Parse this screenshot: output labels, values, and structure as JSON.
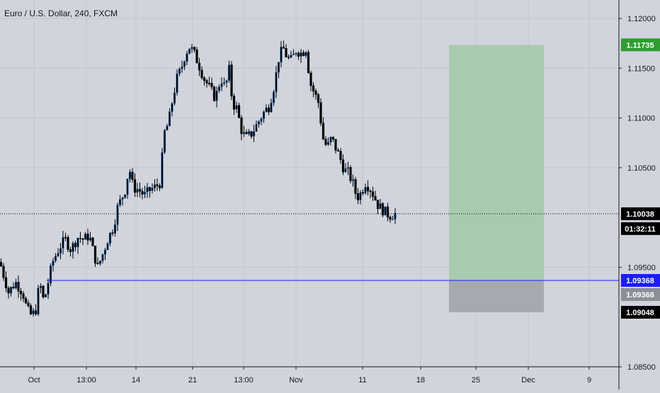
{
  "header": {
    "title": "Euro / U.S. Dollar, 240, FXCM"
  },
  "colors": {
    "background": "#d1d4dc",
    "grid": "#c3c6ce",
    "candle_body": "#000000",
    "candle_up_border": "#2a6db8",
    "target_zone": "#a9cbad",
    "stop_zone": "#a7a9b0",
    "entry_line": "#1c1cff",
    "current_price_line": "#000000",
    "label_green": "#2e9e30",
    "label_blue": "#1c1cff",
    "label_gray": "#8c8f96",
    "label_black": "#000000"
  },
  "price_axis": {
    "ticks": [
      "1.12000",
      "1.11500",
      "1.11000",
      "1.10500",
      "1.09500",
      "1.08500"
    ],
    "labels": {
      "target": "1.11735",
      "current": "1.10038",
      "countdown": "01:32:11",
      "entry": "1.09368",
      "entry_gray": "1.09368",
      "stop": "1.09048"
    }
  },
  "time_axis": {
    "labels": [
      "Oct",
      "13:00",
      "14",
      "21",
      "13:00",
      "Nov",
      "11",
      "18",
      "25",
      "Dec",
      "9"
    ]
  },
  "chart_data": {
    "type": "candlestick",
    "title": "Euro / U.S. Dollar, 240, FXCM",
    "ylim": [
      1.085,
      1.1215
    ],
    "price_ticks": [
      1.12,
      1.115,
      1.11,
      1.105,
      1.095,
      1.085
    ],
    "x_tick_labels": [
      "Oct",
      "13:00",
      "14",
      "21",
      "13:00",
      "Nov",
      "11",
      "18",
      "25",
      "Dec",
      "9"
    ],
    "close_path": [
      [
        0,
        1.0955
      ],
      [
        12,
        1.0925
      ],
      [
        22,
        1.0935
      ],
      [
        32,
        1.0925
      ],
      [
        38,
        1.0908
      ],
      [
        44,
        1.0902
      ],
      [
        50,
        1.0905
      ],
      [
        56,
        1.0935
      ],
      [
        62,
        1.0915
      ],
      [
        68,
        1.0935
      ],
      [
        74,
        1.0955
      ],
      [
        84,
        1.097
      ],
      [
        92,
        1.0978
      ],
      [
        100,
        1.0968
      ],
      [
        110,
        1.098
      ],
      [
        118,
        1.0978
      ],
      [
        126,
        1.0982
      ],
      [
        132,
        1.0965
      ],
      [
        138,
        1.095
      ],
      [
        146,
        1.0965
      ],
      [
        152,
        1.0978
      ],
      [
        160,
        1.099
      ],
      [
        166,
        1.101
      ],
      [
        172,
        1.102
      ],
      [
        178,
        1.103
      ],
      [
        182,
        1.1052
      ],
      [
        188,
        1.103
      ],
      [
        196,
        1.1028
      ],
      [
        204,
        1.1022
      ],
      [
        212,
        1.1028
      ],
      [
        218,
        1.103
      ],
      [
        226,
        1.1035
      ],
      [
        232,
        1.1085
      ],
      [
        238,
        1.1095
      ],
      [
        244,
        1.112
      ],
      [
        250,
        1.114
      ],
      [
        256,
        1.115
      ],
      [
        262,
        1.1165
      ],
      [
        268,
        1.1172
      ],
      [
        274,
        1.1165
      ],
      [
        280,
        1.1155
      ],
      [
        288,
        1.114
      ],
      [
        296,
        1.113
      ],
      [
        304,
        1.112
      ],
      [
        312,
        1.114
      ],
      [
        318,
        1.113
      ],
      [
        324,
        1.115
      ],
      [
        328,
        1.1115
      ],
      [
        334,
        1.111
      ],
      [
        342,
        1.1085
      ],
      [
        348,
        1.108
      ],
      [
        356,
        1.1085
      ],
      [
        364,
        1.1095
      ],
      [
        372,
        1.1105
      ],
      [
        380,
        1.1112
      ],
      [
        388,
        1.1135
      ],
      [
        394,
        1.1162
      ],
      [
        400,
        1.117
      ],
      [
        406,
        1.116
      ],
      [
        412,
        1.1158
      ],
      [
        418,
        1.1168
      ],
      [
        426,
        1.1165
      ],
      [
        432,
        1.117
      ],
      [
        438,
        1.1135
      ],
      [
        444,
        1.1125
      ],
      [
        450,
        1.1115
      ],
      [
        456,
        1.108
      ],
      [
        462,
        1.107
      ],
      [
        468,
        1.108
      ],
      [
        474,
        1.107
      ],
      [
        480,
        1.106
      ],
      [
        486,
        1.1048
      ],
      [
        492,
        1.1045
      ],
      [
        498,
        1.1035
      ],
      [
        504,
        1.102
      ],
      [
        510,
        1.1025
      ],
      [
        516,
        1.1035
      ],
      [
        522,
        1.103
      ],
      [
        528,
        1.1022
      ],
      [
        534,
        1.1012
      ],
      [
        540,
        1.1008
      ],
      [
        546,
        1.1004
      ],
      [
        552,
        1.1002
      ],
      [
        558,
        1.10038
      ]
    ],
    "position": {
      "type": "long",
      "entry": 1.09368,
      "target": 1.11735,
      "stop": 1.09048,
      "current_price": 1.10038
    }
  }
}
